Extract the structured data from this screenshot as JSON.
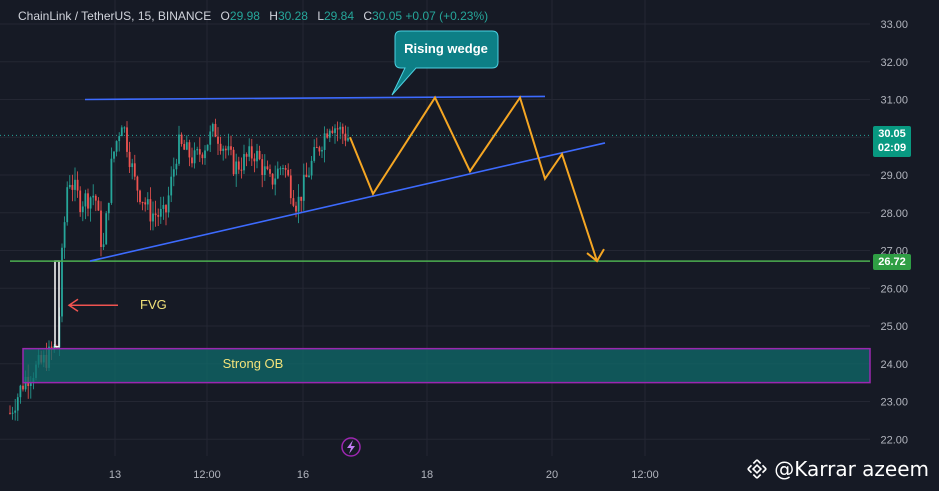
{
  "header": {
    "symbol": "ChainLink / TetherUS, 15, BINANCE",
    "open_label": "O",
    "open": "29.98",
    "high_label": "H",
    "high": "30.28",
    "low_label": "L",
    "low": "29.84",
    "close_label": "C",
    "close": "30.05",
    "change": "+0.07 (+0.23%)"
  },
  "price_axis": {
    "ticks": [
      "33.00",
      "32.00",
      "31.00",
      "30.00",
      "29.00",
      "28.00",
      "27.00",
      "26.00",
      "25.00",
      "24.00",
      "23.00",
      "22.00"
    ],
    "current_price": "30.05",
    "countdown": "02:09",
    "level_price": "26.72"
  },
  "time_axis": {
    "ticks": [
      "13",
      "12:00",
      "16",
      "18",
      "20",
      "12:00"
    ]
  },
  "annotations": {
    "callout": "Rising wedge",
    "fvg": "FVG",
    "order_block": "Strong OB"
  },
  "watermark": {
    "text": "@Karrar azeem",
    "icon": "binance-icon"
  },
  "colors": {
    "background": "#161a25",
    "bull": "#26a69a",
    "bear": "#ef5350",
    "wedge": "#2962ff",
    "projection": "#f5a623",
    "support": "#4caf50",
    "order_block_fill": "#0f6b6b",
    "order_block_border": "#9c27b0"
  },
  "chart_data": {
    "type": "candlestick",
    "y_range": [
      21.7,
      33.4
    ],
    "support_level": 26.72,
    "wedge_upper": [
      [
        85,
        31.0
      ],
      [
        545,
        31.08
      ]
    ],
    "wedge_lower": [
      [
        90,
        26.72
      ],
      [
        605,
        29.85
      ]
    ],
    "projection_path": [
      [
        350,
        30.0
      ],
      [
        373,
        28.5
      ],
      [
        435,
        31.05
      ],
      [
        470,
        29.1
      ],
      [
        520,
        31.05
      ],
      [
        545,
        28.9
      ],
      [
        562,
        29.55
      ],
      [
        597,
        26.72
      ]
    ],
    "order_block": [
      23.5,
      24.4
    ]
  }
}
